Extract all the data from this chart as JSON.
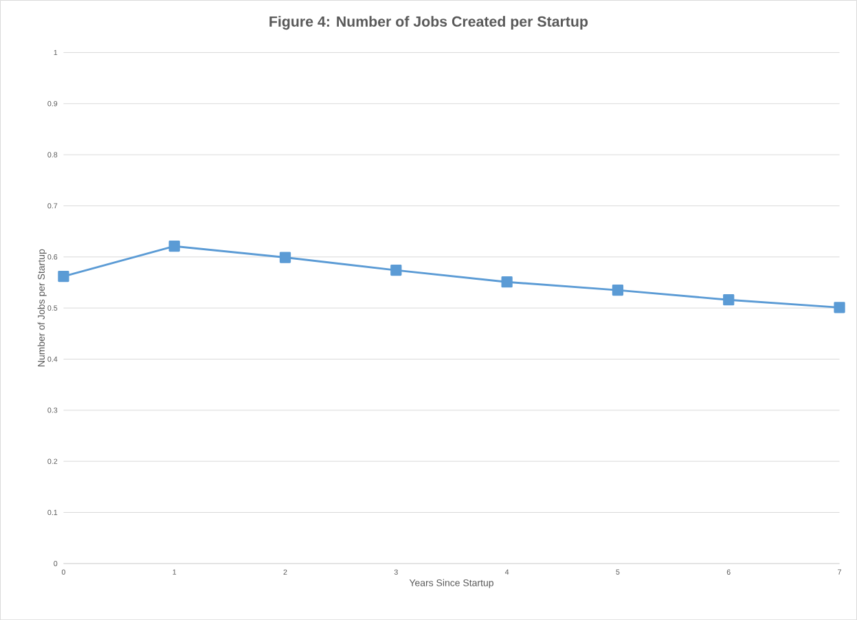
{
  "chart_data": {
    "type": "line",
    "title": "Figure 4: Number of Jobs Created per Startup",
    "xlabel": "Years Since Startup",
    "ylabel": "Number of Jobs per Startup",
    "x": [
      0,
      1,
      2,
      3,
      4,
      5,
      6,
      7
    ],
    "values": [
      0.562,
      0.621,
      0.599,
      0.574,
      0.551,
      0.535,
      0.516,
      0.501
    ],
    "color": "#5b9bd5",
    "marker": "square",
    "line_style": "solid",
    "xlim": [
      0,
      7
    ],
    "xticks": [
      0,
      1,
      2,
      3,
      4,
      5,
      6,
      7
    ],
    "ylim": [
      0,
      1
    ],
    "yticks": [
      0,
      0.1,
      0.2,
      0.3,
      0.4,
      0.5,
      0.6,
      0.7,
      0.8,
      0.9,
      1
    ],
    "grid": "y"
  }
}
